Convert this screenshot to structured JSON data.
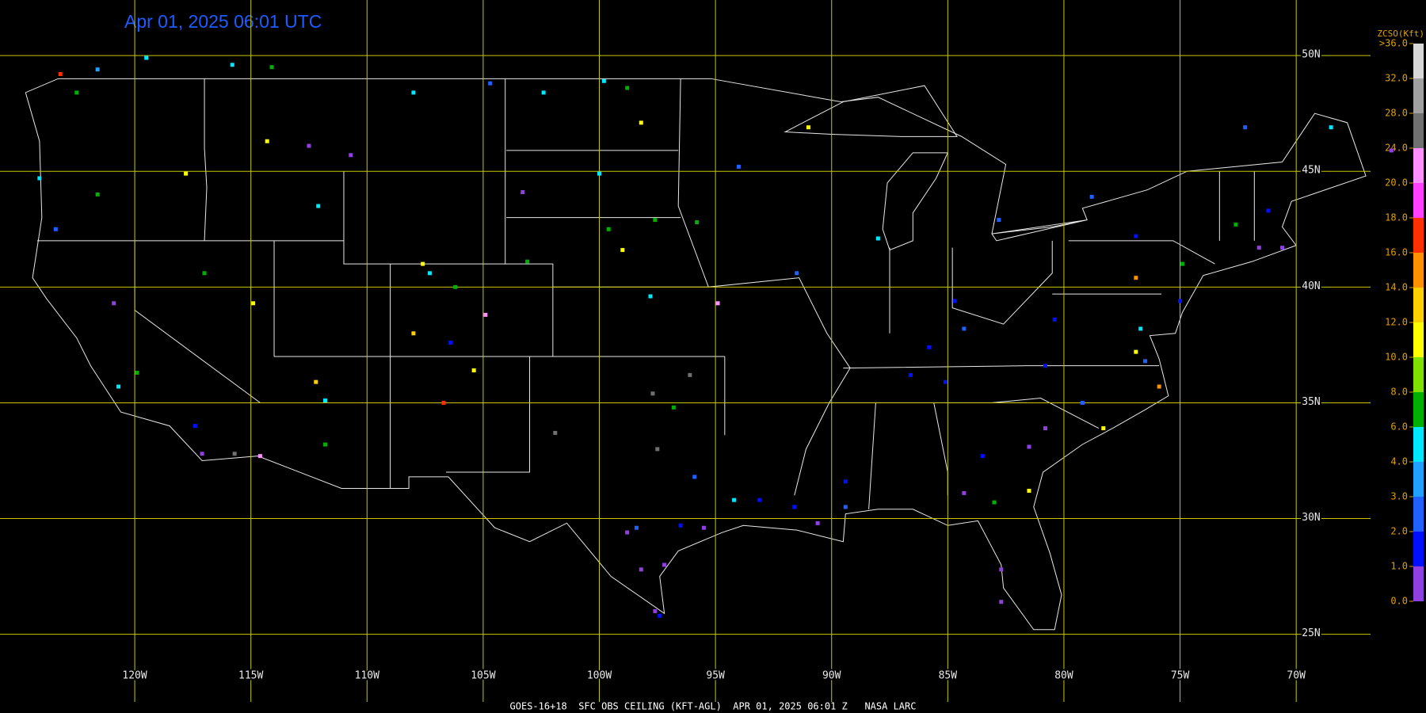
{
  "title": "Apr 01, 2025 06:01 UTC",
  "footer": "GOES-16+18  SFC OBS CEILING (KFT-AGL)  APR 01, 2025 06:01 Z   NASA LARC",
  "xlim": [
    -125.8,
    -66.8
  ],
  "ylim": [
    21.6,
    52.4
  ],
  "lat_lines": [
    {
      "value": 50,
      "label": "50N"
    },
    {
      "value": 45,
      "label": "45N"
    },
    {
      "value": 40,
      "label": "40N"
    },
    {
      "value": 35,
      "label": "35N"
    },
    {
      "value": 30,
      "label": "30N"
    },
    {
      "value": 25,
      "label": "25N"
    }
  ],
  "lon_lines": [
    {
      "value": -120,
      "label": "120W"
    },
    {
      "value": -115,
      "label": "115W"
    },
    {
      "value": -110,
      "label": "110W"
    },
    {
      "value": -105,
      "label": "105W"
    },
    {
      "value": -100,
      "label": "100W"
    },
    {
      "value": -95,
      "label": "95W"
    },
    {
      "value": -90,
      "label": "90W"
    },
    {
      "value": -85,
      "label": "85W"
    },
    {
      "value": -80,
      "label": "80W"
    },
    {
      "value": -75,
      "label": "75W"
    },
    {
      "value": -70,
      "label": "70W"
    }
  ],
  "grid_color": "#c8c800",
  "colorbar": {
    "title": "ZCSO(Kft)",
    "ticks": [
      {
        "value": 0,
        "label": "0.0"
      },
      {
        "value": 1,
        "label": "1.0"
      },
      {
        "value": 2,
        "label": "2.0"
      },
      {
        "value": 3,
        "label": "3.0"
      },
      {
        "value": 4,
        "label": "4.0"
      },
      {
        "value": 6,
        "label": "6.0"
      },
      {
        "value": 8,
        "label": "8.0"
      },
      {
        "value": 10,
        "label": "10.0"
      },
      {
        "value": 12,
        "label": "12.0"
      },
      {
        "value": 14,
        "label": "14.0"
      },
      {
        "value": 16,
        "label": "16.0"
      },
      {
        "value": 18,
        "label": "18.0"
      },
      {
        "value": 20,
        "label": "20.0"
      },
      {
        "value": 24,
        "label": "24.0"
      },
      {
        "value": 28,
        "label": "28.0"
      },
      {
        "value": 32,
        "label": "32.0"
      },
      {
        "value": 36,
        "label": ">36.0"
      }
    ],
    "colors": [
      "#9040e0",
      "#0010ff",
      "#2060ff",
      "#20a0ff",
      "#00e8ff",
      "#00b000",
      "#80e000",
      "#ffff00",
      "#ffd000",
      "#ff9000",
      "#ff3000",
      "#ff40ff",
      "#ff90ff",
      "#707070",
      "#a0a0a0",
      "#d8d8d8"
    ]
  },
  "stations": [
    [
      -123.2,
      49.2,
      17
    ],
    [
      -122.5,
      48.4,
      7
    ],
    [
      -119.5,
      49.9,
      5
    ],
    [
      -121.6,
      49.4,
      3.5
    ],
    [
      -124.1,
      44.7,
      5
    ],
    [
      -121.6,
      44.0,
      7
    ],
    [
      -123.4,
      42.5,
      2.5
    ],
    [
      -120.9,
      39.3,
      0.5
    ],
    [
      -120.7,
      35.7,
      5
    ],
    [
      -119.9,
      36.3,
      7
    ],
    [
      -117.4,
      34.0,
      1.5
    ],
    [
      -117.1,
      32.8,
      0.5
    ],
    [
      -115.7,
      32.8,
      26
    ],
    [
      -114.6,
      32.7,
      22
    ],
    [
      -117.8,
      44.9,
      11
    ],
    [
      -115.8,
      49.6,
      5
    ],
    [
      -114.1,
      49.5,
      7
    ],
    [
      -114.3,
      46.3,
      11
    ],
    [
      -112.5,
      46.1,
      0.5
    ],
    [
      -110.7,
      45.7,
      0.5
    ],
    [
      -112.1,
      43.5,
      5
    ],
    [
      -117.0,
      40.6,
      7
    ],
    [
      -114.9,
      39.3,
      11
    ],
    [
      -112.2,
      35.9,
      13
    ],
    [
      -111.8,
      35.1,
      5
    ],
    [
      -111.8,
      33.2,
      7
    ],
    [
      -107.6,
      41.0,
      11
    ],
    [
      -107.3,
      40.6,
      5
    ],
    [
      -106.2,
      40.0,
      7
    ],
    [
      -106.7,
      35.0,
      17
    ],
    [
      -105.4,
      36.4,
      11
    ],
    [
      -108.0,
      38.0,
      13
    ],
    [
      -104.9,
      38.8,
      22
    ],
    [
      -106.4,
      37.6,
      1.5
    ],
    [
      -108.0,
      48.4,
      5
    ],
    [
      -104.7,
      48.8,
      2.5
    ],
    [
      -102.4,
      48.4,
      5
    ],
    [
      -99.8,
      48.9,
      5
    ],
    [
      -98.8,
      48.6,
      7
    ],
    [
      -98.2,
      47.1,
      11
    ],
    [
      -100.0,
      44.9,
      5
    ],
    [
      -103.3,
      44.1,
      0.5
    ],
    [
      -97.6,
      42.9,
      7
    ],
    [
      -95.8,
      42.8,
      7
    ],
    [
      -99.6,
      42.5,
      7
    ],
    [
      -99.0,
      41.6,
      11
    ],
    [
      -103.1,
      41.1,
      7
    ],
    [
      -97.8,
      39.6,
      5
    ],
    [
      -94.9,
      39.3,
      22
    ],
    [
      -96.1,
      36.2,
      26
    ],
    [
      -97.7,
      35.4,
      26
    ],
    [
      -101.9,
      33.7,
      26
    ],
    [
      -96.8,
      34.8,
      7
    ],
    [
      -97.5,
      33.0,
      26
    ],
    [
      -95.9,
      31.8,
      2.5
    ],
    [
      -94.2,
      30.8,
      5
    ],
    [
      -95.5,
      29.6,
      0.5
    ],
    [
      -96.5,
      29.7,
      1.5
    ],
    [
      -98.8,
      29.4,
      0.5
    ],
    [
      -98.4,
      29.6,
      2.5
    ],
    [
      -97.2,
      28.0,
      0.5
    ],
    [
      -98.2,
      27.8,
      0.5
    ],
    [
      -97.6,
      26.0,
      0.5
    ],
    [
      -97.4,
      25.8,
      1.5
    ],
    [
      -93.1,
      30.8,
      1.5
    ],
    [
      -91.6,
      30.5,
      1.5
    ],
    [
      -90.6,
      29.8,
      0.5
    ],
    [
      -89.4,
      31.6,
      1.5
    ],
    [
      -91.0,
      46.9,
      11
    ],
    [
      -94.0,
      45.2,
      2.5
    ],
    [
      -91.5,
      40.6,
      2.5
    ],
    [
      -88.0,
      42.1,
      5
    ],
    [
      -84.7,
      39.4,
      1.5
    ],
    [
      -82.8,
      42.9,
      2.5
    ],
    [
      -78.8,
      43.9,
      2.5
    ],
    [
      -76.9,
      42.2,
      1.5
    ],
    [
      -75.0,
      39.4,
      1.5
    ],
    [
      -74.9,
      41.0,
      7
    ],
    [
      -72.6,
      42.7,
      7
    ],
    [
      -71.6,
      41.7,
      0.5
    ],
    [
      -71.2,
      43.3,
      1.5
    ],
    [
      -68.5,
      46.9,
      5
    ],
    [
      -65.9,
      45.9,
      0.5
    ],
    [
      -76.9,
      37.2,
      11
    ],
    [
      -76.5,
      36.8,
      2.5
    ],
    [
      -76.7,
      38.2,
      5
    ],
    [
      -75.9,
      35.7,
      15
    ],
    [
      -78.3,
      33.9,
      11
    ],
    [
      -80.8,
      33.9,
      0.5
    ],
    [
      -81.5,
      31.2,
      11
    ],
    [
      -82.7,
      27.8,
      0.5
    ],
    [
      -82.7,
      26.4,
      0.5
    ],
    [
      -84.3,
      31.1,
      0.5
    ],
    [
      -83.5,
      32.7,
      1.5
    ],
    [
      -86.6,
      36.2,
      1.5
    ],
    [
      -85.1,
      35.9,
      1.5
    ],
    [
      -85.8,
      37.4,
      1.5
    ],
    [
      -84.3,
      38.2,
      2.5
    ],
    [
      -80.8,
      36.6,
      1.5
    ],
    [
      -79.2,
      35.0,
      2.5
    ],
    [
      -80.4,
      38.6,
      1.5
    ],
    [
      -76.9,
      40.4,
      15
    ],
    [
      -70.6,
      41.7,
      0.5
    ],
    [
      -72.2,
      46.9,
      2.5
    ],
    [
      -83.0,
      30.7,
      7
    ],
    [
      -81.5,
      33.1,
      0.5
    ],
    [
      -89.4,
      30.5,
      2.5
    ]
  ]
}
